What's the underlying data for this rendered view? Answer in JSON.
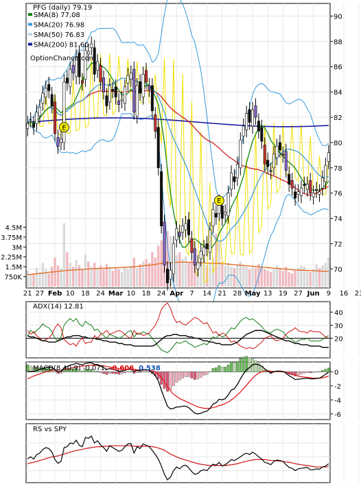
{
  "chart_data": [
    {
      "type": "candlestick",
      "title": "PFG (daily)",
      "last_price": "79.19",
      "watermark": "OptionChance.com",
      "ylim": [
        68.5,
        91
      ],
      "y_ticks": [
        70,
        72,
        74,
        76,
        78,
        80,
        82,
        84,
        86,
        88,
        90
      ],
      "grid": true,
      "legend": [
        {
          "label": "SMA(8)",
          "value": "77.08",
          "color": "#118811"
        },
        {
          "label": "SMA(20)",
          "value": "76.98",
          "color": "#3399dd"
        },
        {
          "label": "SMA(50)",
          "value": "76.83",
          "color": "#b8d8ee"
        },
        {
          "label": "SMA(200)",
          "value": "81.60",
          "color": "#1a1aa0"
        }
      ],
      "x_labels": [
        "21",
        "27",
        "Feb",
        "10",
        "18",
        "24",
        "Mar",
        "10",
        "18",
        "24",
        "Apr",
        "7",
        "14",
        "21",
        "28",
        "May",
        "13",
        "19",
        "27",
        "Jun",
        "9",
        "16",
        "23"
      ],
      "x_label_index": [
        0,
        4,
        9,
        14,
        19,
        24,
        29,
        34,
        39,
        44,
        49,
        54,
        59,
        64,
        69,
        74,
        79,
        84,
        89,
        94,
        99,
        104,
        109
      ],
      "x_label_bold": [
        "Feb",
        "Mar",
        "Apr",
        "May",
        "Jun"
      ],
      "earnings_markers": [
        {
          "index": 12,
          "price": 81.2,
          "text": "E"
        },
        {
          "index": 63,
          "price": 75.4,
          "text": "E"
        }
      ],
      "closes": [
        81.5,
        81.8,
        81.2,
        82.4,
        82.8,
        83.9,
        84.3,
        84.1,
        82.9,
        80.7,
        79.7,
        80.3,
        84.8,
        84.7,
        85.8,
        85.5,
        86.8,
        85.2,
        84.7,
        87.3,
        87.2,
        87.8,
        85.4,
        86.4,
        84.8,
        84.0,
        82.9,
        84.5,
        84.1,
        83.6,
        83.0,
        83.4,
        84.4,
        85.3,
        85.5,
        82.4,
        84.5,
        83.9,
        85.4,
        84.8,
        84.2,
        82.5,
        80.9,
        78.0,
        73.4,
        70.3,
        68.9,
        69.9,
        72.0,
        73.2,
        72.6,
        73.4,
        73.6,
        72.7,
        71.3,
        70.3,
        70.5,
        71.4,
        71.7,
        71.6,
        73.1,
        74.7,
        74.1,
        75.3,
        74.0,
        74.5,
        76.0,
        77.6,
        76.9,
        78.3,
        80.2,
        81.3,
        82.3,
        81.6,
        82.6,
        82.0,
        80.9,
        80.1,
        78.3,
        78.1,
        77.7,
        79.1,
        79.7,
        79.4,
        79.0,
        77.8,
        76.7,
        76.4,
        75.6,
        76.1,
        76.4,
        76.6,
        76.7,
        76.0,
        76.0,
        76.2,
        76.1,
        77.2,
        78.2,
        79.2
      ],
      "volume_yticks": [
        "750K",
        "1.5M",
        "2.25M",
        "3M",
        "3.75M",
        "4.5M"
      ],
      "volume_ytick_values": [
        0.75,
        1.5,
        2.25,
        3.0,
        3.75,
        4.5
      ],
      "volume_ylim": [
        0,
        5.2
      ],
      "volume_millions": [
        1.2,
        0.9,
        1.0,
        1.4,
        1.1,
        1.8,
        1.3,
        1.0,
        1.5,
        2.2,
        1.6,
        1.4,
        4.8,
        2.6,
        1.8,
        1.5,
        2.0,
        1.6,
        1.3,
        2.4,
        1.9,
        1.5,
        1.8,
        1.4,
        1.6,
        1.3,
        1.7,
        1.5,
        1.2,
        1.4,
        1.3,
        1.1,
        1.5,
        1.3,
        1.6,
        2.2,
        1.4,
        1.7,
        1.9,
        2.1,
        1.8,
        2.6,
        2.2,
        3.1,
        3.5,
        2.7,
        4.2,
        3.8,
        2.9,
        2.4,
        2.6,
        2.1,
        2.3,
        1.8,
        2.0,
        2.2,
        1.7,
        1.9,
        2.1,
        1.6,
        1.8,
        2.2,
        4.0,
        3.4,
        1.9,
        1.6,
        1.8,
        1.5,
        1.4,
        1.7,
        1.9,
        1.6,
        1.5,
        1.3,
        1.5,
        1.4,
        1.7,
        1.5,
        1.3,
        1.2,
        1.1,
        1.3,
        1.6,
        1.4,
        1.2,
        1.5,
        1.1,
        1.0,
        1.2,
        1.4,
        1.6,
        1.5,
        1.2,
        1.1,
        1.3,
        1.7,
        1.4,
        1.6,
        1.8,
        2.2
      ],
      "volume_avg_millions": [
        0.9,
        0.92,
        0.95,
        0.97,
        1.0,
        1.02,
        1.05,
        1.08,
        1.1,
        1.12,
        1.15,
        1.18,
        1.2,
        1.22,
        1.24,
        1.25,
        1.27,
        1.28,
        1.3,
        1.32,
        1.33,
        1.35,
        1.36,
        1.37,
        1.38,
        1.39,
        1.4,
        1.41,
        1.42,
        1.43,
        1.44,
        1.45,
        1.46,
        1.47,
        1.48,
        1.5,
        1.52,
        1.55,
        1.58,
        1.6,
        1.62,
        1.65,
        1.68,
        1.72,
        1.75,
        1.78,
        1.8,
        1.82,
        1.83,
        1.84,
        1.85,
        1.85,
        1.85,
        1.84,
        1.83,
        1.82,
        1.81,
        1.8,
        1.79,
        1.78,
        1.78,
        1.77,
        1.76,
        1.75,
        1.73,
        1.72,
        1.7,
        1.68,
        1.66,
        1.64,
        1.62,
        1.6,
        1.58,
        1.56,
        1.54,
        1.52,
        1.5,
        1.48,
        1.46,
        1.44,
        1.42,
        1.4,
        1.38,
        1.36,
        1.34,
        1.32,
        1.3,
        1.28,
        1.26,
        1.25,
        1.24,
        1.23,
        1.22,
        1.21,
        1.2,
        1.19,
        1.18,
        1.17,
        1.16,
        1.15
      ]
    },
    {
      "type": "line",
      "title": "ADX(14)",
      "last_value": "12.81",
      "ylim": [
        5,
        48
      ],
      "y_ticks": [
        20,
        30,
        40
      ],
      "grid": true,
      "series": [
        {
          "name": "ADX(14)",
          "color": "#000000",
          "values": [
            22,
            21,
            21,
            20,
            19,
            18,
            18,
            17,
            17,
            17,
            18,
            19,
            20,
            21,
            21,
            22,
            22,
            22,
            21,
            21,
            20,
            20,
            20,
            19,
            19,
            18,
            18,
            17,
            17,
            17,
            16,
            16,
            15,
            15,
            15,
            14,
            14,
            14,
            14,
            14,
            14,
            14,
            15,
            17,
            19,
            21,
            22,
            22,
            23,
            23,
            22,
            22,
            22,
            21,
            21,
            20,
            20,
            19,
            18,
            18,
            17,
            17,
            16,
            16,
            15,
            15,
            15,
            15,
            16,
            17,
            19,
            21,
            23,
            24,
            25,
            26,
            26,
            26,
            25,
            24,
            23,
            22,
            21,
            20,
            19,
            18,
            18,
            17,
            16,
            16,
            15,
            15,
            15,
            14,
            14,
            14,
            14,
            13,
            13,
            13
          ]
        },
        {
          "name": "+DI",
          "color": "#117711",
          "values": [
            22,
            26,
            24,
            26,
            28,
            31,
            29,
            28,
            25,
            20,
            18,
            21,
            30,
            33,
            35,
            33,
            35,
            31,
            29,
            33,
            31,
            30,
            26,
            27,
            24,
            22,
            20,
            23,
            22,
            21,
            20,
            21,
            23,
            25,
            26,
            21,
            24,
            23,
            25,
            24,
            23,
            20,
            17,
            14,
            11,
            10,
            9,
            11,
            14,
            17,
            16,
            17,
            18,
            16,
            15,
            13,
            14,
            15,
            16,
            15,
            18,
            21,
            20,
            23,
            21,
            22,
            25,
            28,
            27,
            30,
            33,
            35,
            36,
            34,
            35,
            33,
            31,
            29,
            26,
            25,
            24,
            26,
            27,
            26,
            25,
            22,
            20,
            19,
            17,
            18,
            19,
            19,
            20,
            18,
            18,
            18,
            18,
            19,
            21,
            22
          ]
        },
        {
          "name": "-DI",
          "color": "#cc1111",
          "values": [
            26,
            23,
            25,
            22,
            20,
            18,
            19,
            20,
            23,
            28,
            31,
            28,
            19,
            17,
            15,
            16,
            14,
            18,
            20,
            16,
            17,
            17,
            22,
            20,
            23,
            24,
            26,
            23,
            24,
            25,
            26,
            25,
            23,
            21,
            20,
            26,
            23,
            24,
            22,
            23,
            24,
            27,
            30,
            35,
            42,
            45,
            47,
            43,
            36,
            32,
            33,
            31,
            30,
            32,
            34,
            36,
            35,
            33,
            31,
            32,
            28,
            24,
            25,
            22,
            24,
            23,
            20,
            17,
            18,
            16,
            14,
            13,
            12,
            13,
            12,
            13,
            15,
            17,
            20,
            21,
            22,
            19,
            18,
            19,
            20,
            23,
            25,
            26,
            28,
            26,
            25,
            25,
            24,
            26,
            25,
            25,
            25,
            23,
            21,
            20
          ]
        }
      ]
    },
    {
      "type": "bar+line",
      "title": "MACD(8,40,9)",
      "legend": [
        {
          "text": "MACD(8,40,9) -0.071,",
          "color": "#000000"
        },
        {
          "text": "-0.606,",
          "color": "#dd0000"
        },
        {
          "text": "0.538",
          "color": "#1155bb"
        }
      ],
      "ylim": [
        -6.8,
        1.4
      ],
      "y_ticks": [
        0,
        -2,
        -4,
        -6
      ],
      "grid": true,
      "macd": [
        0.0,
        0.05,
        0.05,
        0.2,
        0.3,
        0.45,
        0.6,
        0.7,
        0.6,
        0.3,
        0.0,
        0.0,
        0.55,
        0.75,
        0.95,
        1.05,
        1.2,
        1.1,
        0.95,
        1.2,
        1.25,
        1.3,
        1.05,
        1.05,
        0.8,
        0.6,
        0.35,
        0.45,
        0.35,
        0.25,
        0.1,
        0.1,
        0.2,
        0.35,
        0.45,
        0.05,
        0.2,
        0.15,
        0.3,
        0.3,
        0.2,
        -0.1,
        -0.55,
        -1.3,
        -2.6,
        -3.8,
        -4.9,
        -5.3,
        -5.2,
        -5.0,
        -5.0,
        -4.9,
        -4.9,
        -5.1,
        -5.5,
        -5.9,
        -6.0,
        -5.9,
        -5.7,
        -5.6,
        -5.2,
        -4.6,
        -4.4,
        -3.9,
        -4.0,
        -3.8,
        -3.3,
        -2.6,
        -2.4,
        -1.8,
        -1.0,
        -0.3,
        0.3,
        0.6,
        1.0,
        1.1,
        1.0,
        0.8,
        0.4,
        0.1,
        -0.15,
        0.0,
        0.1,
        0.1,
        0.05,
        -0.2,
        -0.55,
        -0.8,
        -1.1,
        -1.05,
        -1.0,
        -0.95,
        -0.9,
        -1.0,
        -1.0,
        -0.95,
        -0.9,
        -0.65,
        -0.35,
        -0.07
      ],
      "signal": [
        -1.0,
        -0.8,
        -0.6,
        -0.45,
        -0.3,
        -0.15,
        0.0,
        0.1,
        0.2,
        0.25,
        0.25,
        0.2,
        0.3,
        0.4,
        0.5,
        0.6,
        0.7,
        0.75,
        0.8,
        0.85,
        0.9,
        0.95,
        0.95,
        0.95,
        0.9,
        0.85,
        0.75,
        0.7,
        0.6,
        0.55,
        0.45,
        0.4,
        0.35,
        0.35,
        0.35,
        0.3,
        0.3,
        0.25,
        0.25,
        0.25,
        0.25,
        0.15,
        0.0,
        -0.3,
        -0.8,
        -1.4,
        -2.1,
        -2.7,
        -3.2,
        -3.5,
        -3.8,
        -4.0,
        -4.2,
        -4.4,
        -4.6,
        -4.8,
        -5.0,
        -5.1,
        -5.2,
        -5.2,
        -5.2,
        -5.1,
        -5.0,
        -4.8,
        -4.7,
        -4.5,
        -4.3,
        -4.0,
        -3.7,
        -3.3,
        -2.9,
        -2.4,
        -1.9,
        -1.4,
        -0.9,
        -0.5,
        -0.2,
        0.0,
        0.1,
        0.15,
        0.1,
        0.05,
        0.05,
        0.05,
        0.0,
        -0.1,
        -0.2,
        -0.35,
        -0.5,
        -0.6,
        -0.7,
        -0.75,
        -0.8,
        -0.85,
        -0.9,
        -0.9,
        -0.9,
        -0.85,
        -0.75,
        -0.61
      ]
    },
    {
      "type": "line",
      "title": "RS vs SPY",
      "grid": true,
      "ylim": [
        0.0,
        1.1
      ],
      "series": [
        {
          "name": "RS vs SPY",
          "color": "#000000",
          "values": [
            0.46,
            0.5,
            0.45,
            0.55,
            0.58,
            0.66,
            0.7,
            0.68,
            0.6,
            0.44,
            0.36,
            0.4,
            0.7,
            0.72,
            0.8,
            0.78,
            0.86,
            0.75,
            0.72,
            0.92,
            0.9,
            0.95,
            0.8,
            0.85,
            0.76,
            0.7,
            0.62,
            0.74,
            0.7,
            0.66,
            0.62,
            0.64,
            0.72,
            0.78,
            0.79,
            0.58,
            0.72,
            0.68,
            0.78,
            0.75,
            0.72,
            0.64,
            0.55,
            0.45,
            0.3,
            0.12,
            0.0,
            0.06,
            0.2,
            0.28,
            0.24,
            0.3,
            0.32,
            0.26,
            0.18,
            0.12,
            0.14,
            0.2,
            0.22,
            0.2,
            0.28,
            0.34,
            0.32,
            0.38,
            0.3,
            0.33,
            0.38,
            0.44,
            0.42,
            0.46,
            0.5,
            0.55,
            0.58,
            0.55,
            0.6,
            0.56,
            0.5,
            0.45,
            0.38,
            0.36,
            0.33,
            0.4,
            0.43,
            0.42,
            0.4,
            0.33,
            0.27,
            0.25,
            0.2,
            0.24,
            0.25,
            0.26,
            0.27,
            0.22,
            0.22,
            0.24,
            0.23,
            0.28,
            0.3,
            0.35
          ]
        },
        {
          "name": "RS average",
          "color": "#cc1111",
          "values": [
            0.35,
            0.37,
            0.38,
            0.4,
            0.42,
            0.44,
            0.46,
            0.48,
            0.5,
            0.51,
            0.52,
            0.54,
            0.56,
            0.58,
            0.6,
            0.62,
            0.64,
            0.65,
            0.66,
            0.68,
            0.69,
            0.7,
            0.71,
            0.72,
            0.72,
            0.73,
            0.73,
            0.74,
            0.74,
            0.74,
            0.74,
            0.74,
            0.74,
            0.74,
            0.74,
            0.73,
            0.73,
            0.73,
            0.73,
            0.73,
            0.73,
            0.72,
            0.71,
            0.69,
            0.67,
            0.64,
            0.6,
            0.56,
            0.53,
            0.5,
            0.47,
            0.45,
            0.43,
            0.41,
            0.39,
            0.37,
            0.35,
            0.34,
            0.33,
            0.32,
            0.31,
            0.31,
            0.31,
            0.31,
            0.31,
            0.31,
            0.32,
            0.33,
            0.34,
            0.35,
            0.37,
            0.39,
            0.4,
            0.42,
            0.43,
            0.44,
            0.44,
            0.44,
            0.44,
            0.43,
            0.42,
            0.42,
            0.41,
            0.41,
            0.4,
            0.39,
            0.38,
            0.37,
            0.35,
            0.34,
            0.33,
            0.32,
            0.31,
            0.3,
            0.29,
            0.28,
            0.28,
            0.28,
            0.28,
            0.29
          ]
        }
      ]
    }
  ]
}
